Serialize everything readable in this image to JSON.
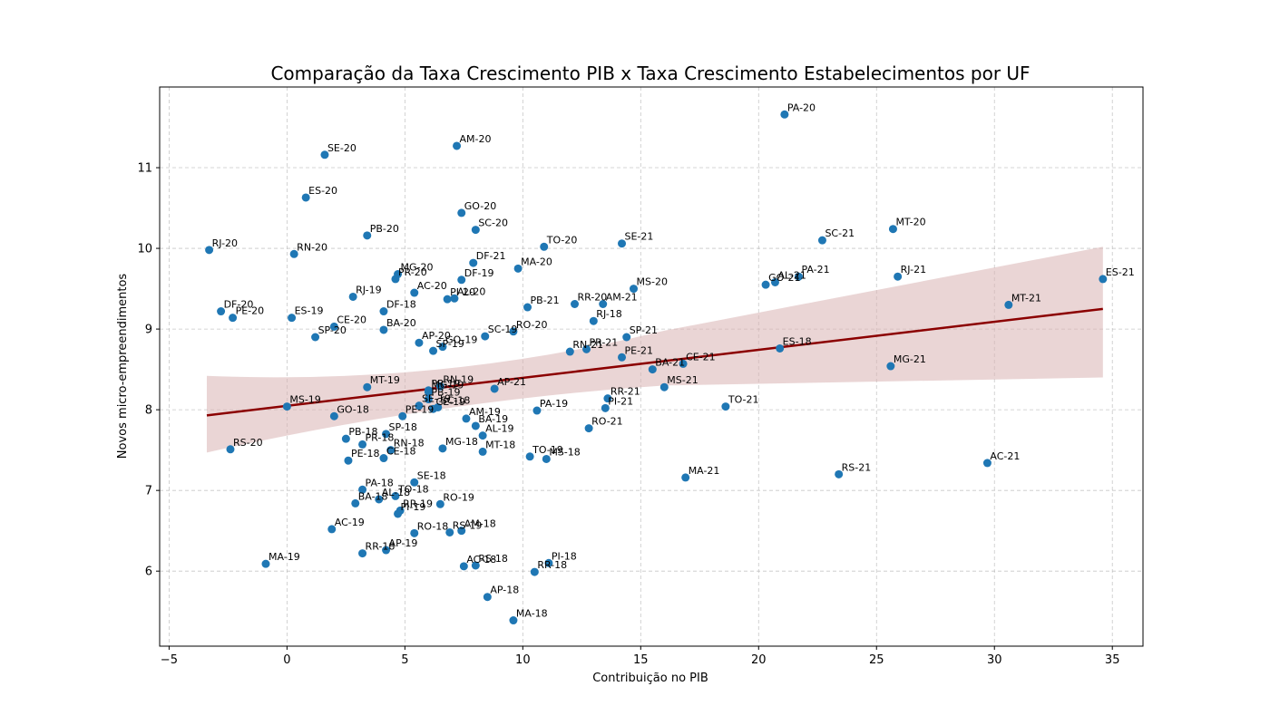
{
  "chart_data": {
    "type": "scatter",
    "title": "Comparação da Taxa Crescimento PIB x Taxa Crescimento Estabelecimentos por UF",
    "xlabel": "Contribuição no PIB",
    "ylabel": "Novos micro-empreendimentos",
    "xlim": [
      -5.4,
      36.3
    ],
    "ylim": [
      5.07,
      12.0
    ],
    "xticks": [
      -5,
      0,
      5,
      10,
      15,
      20,
      25,
      30,
      35
    ],
    "yticks": [
      6,
      7,
      8,
      9,
      10,
      11
    ],
    "grid": true,
    "colors": {
      "points": "#1f77b4",
      "regression": "#8b0000",
      "ci_band": "#d9b3b3",
      "connector": "#d62728"
    },
    "regression": {
      "x_range": [
        -3.4,
        34.6
      ],
      "y_start": 7.93,
      "y_end": 9.25,
      "ci_upper": [
        8.42,
        10.02
      ],
      "ci_lower": [
        7.47,
        8.4
      ]
    },
    "points": [
      {
        "label": "PA-20",
        "x": 21.1,
        "y": 11.66
      },
      {
        "label": "AM-20",
        "x": 7.2,
        "y": 11.27
      },
      {
        "label": "SE-20",
        "x": 1.6,
        "y": 11.16
      },
      {
        "label": "ES-20",
        "x": 0.8,
        "y": 10.63
      },
      {
        "label": "GO-20",
        "x": 7.4,
        "y": 10.44
      },
      {
        "label": "SC-20",
        "x": 8.0,
        "y": 10.23
      },
      {
        "label": "MT-20",
        "x": 25.7,
        "y": 10.24
      },
      {
        "label": "PB-20",
        "x": 3.4,
        "y": 10.16
      },
      {
        "label": "SC-21",
        "x": 22.7,
        "y": 10.1
      },
      {
        "label": "SE-21",
        "x": 14.2,
        "y": 10.06
      },
      {
        "label": "TO-20",
        "x": 10.9,
        "y": 10.02
      },
      {
        "label": "RJ-20",
        "x": -3.3,
        "y": 9.98
      },
      {
        "label": "RN-20",
        "x": 0.3,
        "y": 9.93
      },
      {
        "label": "DF-21",
        "x": 7.9,
        "y": 9.82
      },
      {
        "label": "MA-20",
        "x": 9.8,
        "y": 9.75
      },
      {
        "label": "MG-20",
        "x": 4.7,
        "y": 9.68
      },
      {
        "label": "PA-21",
        "x": 21.7,
        "y": 9.65
      },
      {
        "label": "RJ-21",
        "x": 25.9,
        "y": 9.65
      },
      {
        "label": "ES-21",
        "x": 34.6,
        "y": 9.62
      },
      {
        "label": "PR-20",
        "x": 4.6,
        "y": 9.62
      },
      {
        "label": "DF-19",
        "x": 7.4,
        "y": 9.61
      },
      {
        "label": "GO-21",
        "x": 20.3,
        "y": 9.55
      },
      {
        "label": "AL-21",
        "x": 20.7,
        "y": 9.58
      },
      {
        "label": "MS-20",
        "x": 14.7,
        "y": 9.5
      },
      {
        "label": "AC-20",
        "x": 5.4,
        "y": 9.45
      },
      {
        "label": "RJ-19",
        "x": 2.8,
        "y": 9.4
      },
      {
        "label": "AL-20",
        "x": 7.1,
        "y": 9.38
      },
      {
        "label": "PI-20",
        "x": 6.8,
        "y": 9.37
      },
      {
        "label": "RR-20",
        "x": 12.2,
        "y": 9.31
      },
      {
        "label": "AM-21",
        "x": 13.4,
        "y": 9.31
      },
      {
        "label": "MT-21",
        "x": 30.6,
        "y": 9.3
      },
      {
        "label": "PB-21",
        "x": 10.2,
        "y": 9.27
      },
      {
        "label": "DF-20",
        "x": -2.8,
        "y": 9.22
      },
      {
        "label": "DF-18",
        "x": 4.1,
        "y": 9.22
      },
      {
        "label": "ES-19",
        "x": 0.2,
        "y": 9.14
      },
      {
        "label": "PE-20",
        "x": -2.3,
        "y": 9.14
      },
      {
        "label": "RJ-18",
        "x": 13.0,
        "y": 9.1
      },
      {
        "label": "CE-20",
        "x": 2.0,
        "y": 9.03
      },
      {
        "label": "BA-20",
        "x": 4.1,
        "y": 8.99
      },
      {
        "label": "RO-20",
        "x": 9.6,
        "y": 8.97
      },
      {
        "label": "SC-19",
        "x": 8.4,
        "y": 8.91
      },
      {
        "label": "SP-21",
        "x": 14.4,
        "y": 8.9
      },
      {
        "label": "SP-20",
        "x": 1.2,
        "y": 8.9
      },
      {
        "label": "AP-20",
        "x": 5.6,
        "y": 8.83
      },
      {
        "label": "GO-19",
        "x": 6.6,
        "y": 8.78
      },
      {
        "label": "ES-18",
        "x": 20.9,
        "y": 8.76
      },
      {
        "label": "PR-21",
        "x": 12.7,
        "y": 8.75
      },
      {
        "label": "SP-19",
        "x": 6.2,
        "y": 8.73
      },
      {
        "label": "RN-21",
        "x": 12.0,
        "y": 8.72
      },
      {
        "label": "PE-21",
        "x": 14.2,
        "y": 8.65
      },
      {
        "label": "CE-21",
        "x": 16.8,
        "y": 8.57
      },
      {
        "label": "MG-21",
        "x": 25.6,
        "y": 8.54
      },
      {
        "label": "BA-21",
        "x": 15.5,
        "y": 8.5
      },
      {
        "label": "MT-19",
        "x": 3.4,
        "y": 8.28
      },
      {
        "label": "MS-21",
        "x": 16.0,
        "y": 8.28
      },
      {
        "label": "RN-19",
        "x": 6.5,
        "y": 8.29
      },
      {
        "label": "AP-21",
        "x": 8.8,
        "y": 8.26
      },
      {
        "label": "PR-19",
        "x": 6.0,
        "y": 8.24
      },
      {
        "label": "MG-19",
        "x": 6.0,
        "y": 8.22
      },
      {
        "label": "RR-21",
        "x": 13.6,
        "y": 8.14
      },
      {
        "label": "PB-19",
        "x": 6.0,
        "y": 8.13
      },
      {
        "label": "SE-19",
        "x": 5.6,
        "y": 8.05
      },
      {
        "label": "CE-19",
        "x": 6.2,
        "y": 8.01
      },
      {
        "label": "SC-18",
        "x": 6.4,
        "y": 8.03
      },
      {
        "label": "TO-21",
        "x": 18.6,
        "y": 8.04
      },
      {
        "label": "MS-19",
        "x": 0.0,
        "y": 8.04
      },
      {
        "label": "PI-21",
        "x": 13.5,
        "y": 8.02
      },
      {
        "label": "PA-19",
        "x": 10.6,
        "y": 7.99
      },
      {
        "label": "GO-18",
        "x": 2.0,
        "y": 7.92
      },
      {
        "label": "PE-19",
        "x": 4.9,
        "y": 7.92
      },
      {
        "label": "AM-19",
        "x": 7.6,
        "y": 7.89
      },
      {
        "label": "RO-21",
        "x": 12.8,
        "y": 7.77
      },
      {
        "label": "BA-19",
        "x": 8.0,
        "y": 7.8
      },
      {
        "label": "SP-18",
        "x": 4.2,
        "y": 7.7
      },
      {
        "label": "AL-19",
        "x": 8.3,
        "y": 7.68
      },
      {
        "label": "PB-18",
        "x": 2.5,
        "y": 7.64
      },
      {
        "label": "PR-18",
        "x": 3.2,
        "y": 7.57
      },
      {
        "label": "MG-18",
        "x": 6.6,
        "y": 7.52
      },
      {
        "label": "RN-18",
        "x": 4.4,
        "y": 7.5
      },
      {
        "label": "MT-18",
        "x": 8.3,
        "y": 7.48
      },
      {
        "label": "TO-19",
        "x": 10.3,
        "y": 7.42
      },
      {
        "label": "MS-18",
        "x": 11.0,
        "y": 7.39
      },
      {
        "label": "PE-18",
        "x": 2.6,
        "y": 7.37
      },
      {
        "label": "CE-18",
        "x": 4.1,
        "y": 7.4
      },
      {
        "label": "AC-21",
        "x": 29.7,
        "y": 7.34
      },
      {
        "label": "RS-20",
        "x": -2.4,
        "y": 7.51
      },
      {
        "label": "RS-21",
        "x": 23.4,
        "y": 7.2
      },
      {
        "label": "MA-21",
        "x": 16.9,
        "y": 7.16
      },
      {
        "label": "SE-18",
        "x": 5.4,
        "y": 7.1
      },
      {
        "label": "PA-18",
        "x": 3.2,
        "y": 7.01
      },
      {
        "label": "TO-18",
        "x": 4.6,
        "y": 6.93
      },
      {
        "label": "AL-18",
        "x": 3.9,
        "y": 6.89
      },
      {
        "label": "BA-18",
        "x": 2.9,
        "y": 6.84
      },
      {
        "label": "RO-19",
        "x": 6.5,
        "y": 6.83
      },
      {
        "label": "RR-19",
        "x": 4.8,
        "y": 6.75
      },
      {
        "label": "PI-19",
        "x": 4.7,
        "y": 6.71
      },
      {
        "label": "AC-19",
        "x": 1.9,
        "y": 6.52
      },
      {
        "label": "AM-18",
        "x": 7.4,
        "y": 6.5
      },
      {
        "label": "RS-19",
        "x": 6.9,
        "y": 6.48
      },
      {
        "label": "RO-18",
        "x": 5.4,
        "y": 6.47
      },
      {
        "label": "AP-19",
        "x": 4.2,
        "y": 6.26
      },
      {
        "label": "RR-18",
        "x": 3.2,
        "y": 6.22
      },
      {
        "label": "MA-19",
        "x": -0.9,
        "y": 6.09
      },
      {
        "label": "PI-18",
        "x": 11.1,
        "y": 6.1
      },
      {
        "label": "RS-18",
        "x": 8.0,
        "y": 6.07
      },
      {
        "label": "AC-18",
        "x": 7.5,
        "y": 6.06
      },
      {
        "label": "RR-18b",
        "x": 10.5,
        "y": 5.99
      },
      {
        "label": "AP-18",
        "x": 8.5,
        "y": 5.68
      },
      {
        "label": "MA-18",
        "x": 9.6,
        "y": 5.39
      }
    ]
  }
}
